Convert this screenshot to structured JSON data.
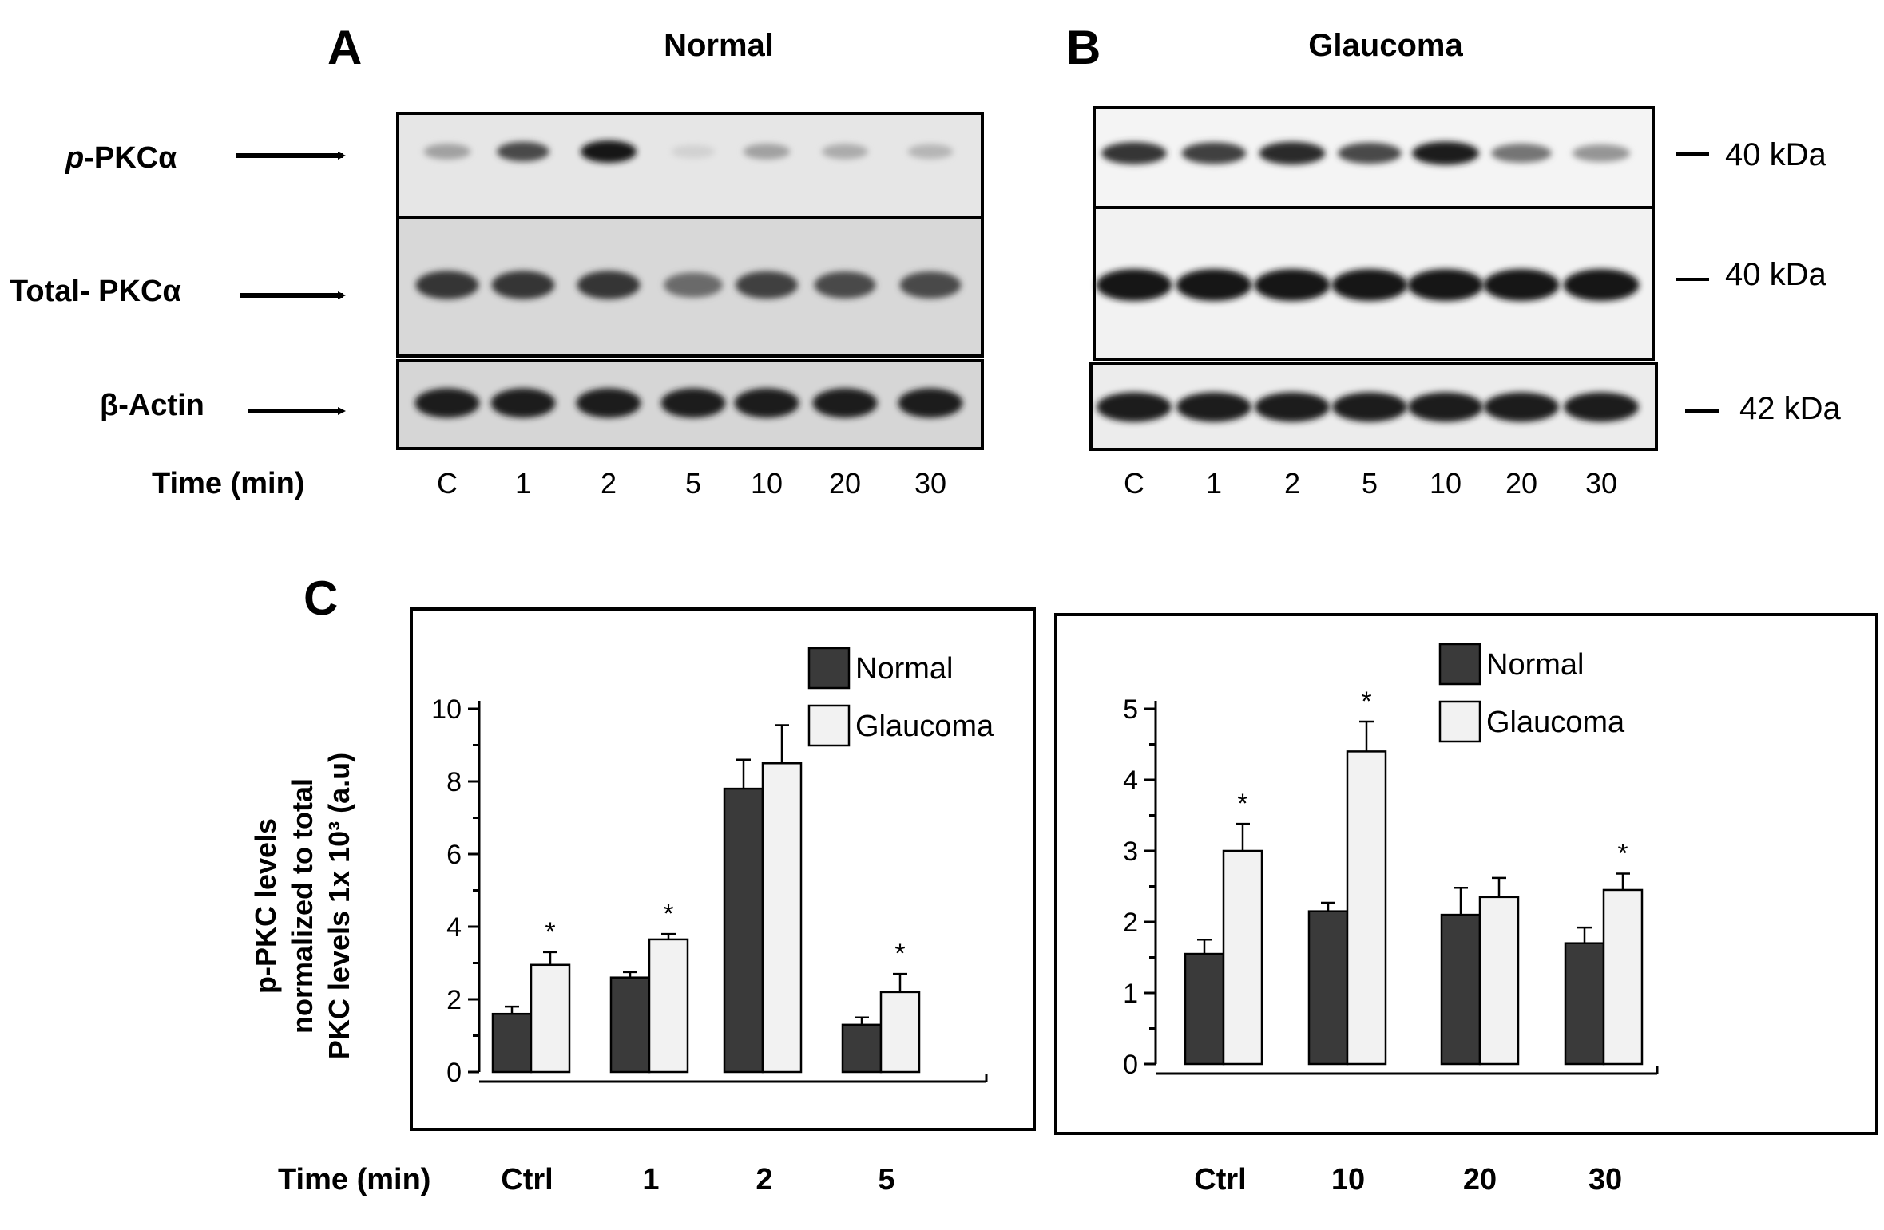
{
  "panels": {
    "a_letter": "A",
    "b_letter": "B",
    "c_letter": "C",
    "normal_title": "Normal",
    "glaucoma_title": "Glaucoma"
  },
  "blot": {
    "row_labels": {
      "p_prefix": "p",
      "p_rest": "-PKCα",
      "total": "Total- PKCα",
      "actin": "β-Actin"
    },
    "time_label": "Time (min)",
    "normal_lanes": [
      "C",
      "1",
      "2",
      "5",
      "10",
      "20",
      "30"
    ],
    "glaucoma_lanes": [
      "C",
      "1",
      "2",
      "5",
      "10",
      "20",
      "30"
    ],
    "mw_markers": [
      "40 kDa",
      "40 kDa",
      "42 kDa"
    ],
    "band_intensity": {
      "normal": {
        "p_pkc": [
          0.35,
          0.75,
          1.0,
          0.12,
          0.35,
          0.3,
          0.25
        ],
        "total_pkc": [
          0.85,
          0.85,
          0.85,
          0.6,
          0.8,
          0.75,
          0.75
        ],
        "actin": [
          0.95,
          0.95,
          0.95,
          0.95,
          0.95,
          0.95,
          0.95
        ]
      },
      "glaucoma": {
        "p_pkc": [
          0.85,
          0.8,
          0.9,
          0.75,
          0.95,
          0.55,
          0.4
        ],
        "total_pkc": [
          1.0,
          1.0,
          1.0,
          1.0,
          1.0,
          1.0,
          1.0
        ],
        "actin": [
          0.95,
          0.95,
          0.95,
          0.95,
          0.95,
          0.95,
          0.95
        ]
      }
    }
  },
  "chart_data": [
    {
      "type": "bar",
      "title": "",
      "xlabel": "Time (min)",
      "ylabel_lines": [
        "p-PKC levels",
        "normalized to total",
        "PKC levels 1x 10³ (a.u)"
      ],
      "categories": [
        "Ctrl",
        "1",
        "2",
        "5"
      ],
      "ylim": [
        0,
        10
      ],
      "yticks": [
        "0",
        "2",
        "4",
        "6",
        "8",
        "10"
      ],
      "series": [
        {
          "name": "Normal",
          "color": "#3a3a3a",
          "values": [
            1.6,
            2.6,
            7.8,
            1.3
          ],
          "errors": [
            0.2,
            0.15,
            0.8,
            0.2
          ],
          "sig": [
            false,
            false,
            false,
            false
          ]
        },
        {
          "name": "Glaucoma",
          "color": "#f2f2f2",
          "values": [
            2.95,
            3.65,
            8.5,
            2.2
          ],
          "errors": [
            0.35,
            0.15,
            1.05,
            0.5
          ],
          "sig": [
            true,
            true,
            false,
            true
          ]
        }
      ],
      "sig_symbol": "*",
      "legend": "top-right"
    },
    {
      "type": "bar",
      "title": "",
      "xlabel": "",
      "categories": [
        "Ctrl",
        "10",
        "20",
        "30"
      ],
      "ylim": [
        0,
        5
      ],
      "yticks": [
        "0",
        "1",
        "2",
        "3",
        "4",
        "5"
      ],
      "series": [
        {
          "name": "Normal",
          "color": "#3a3a3a",
          "values": [
            1.55,
            2.15,
            2.1,
            1.7
          ],
          "errors": [
            0.2,
            0.12,
            0.38,
            0.22
          ],
          "sig": [
            false,
            false,
            false,
            false
          ]
        },
        {
          "name": "Glaucoma",
          "color": "#f2f2f2",
          "values": [
            3.0,
            4.4,
            2.35,
            2.45
          ],
          "errors": [
            0.38,
            0.42,
            0.27,
            0.23
          ],
          "sig": [
            true,
            true,
            false,
            true
          ]
        }
      ],
      "sig_symbol": "*",
      "legend": "top-right"
    }
  ]
}
